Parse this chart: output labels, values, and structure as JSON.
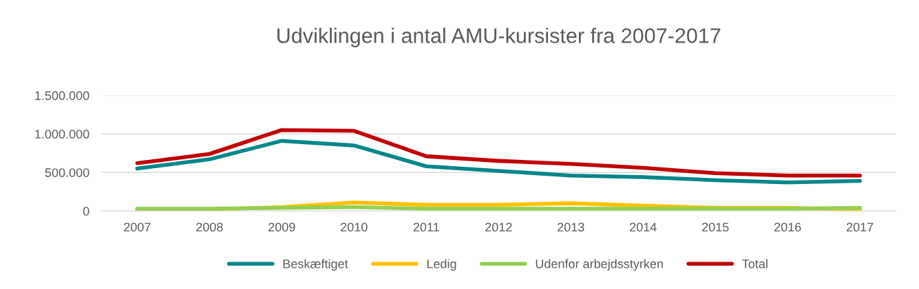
{
  "chart_data": {
    "type": "line",
    "title": "Udviklingen i antal AMU-kursister fra 2007-2017",
    "categories": [
      "2007",
      "2008",
      "2009",
      "2010",
      "2011",
      "2012",
      "2013",
      "2014",
      "2015",
      "2016",
      "2017"
    ],
    "series": [
      {
        "name": "Beskæftiget",
        "color": "#00868b",
        "values": [
          550000,
          670000,
          910000,
          850000,
          580000,
          520000,
          460000,
          440000,
          400000,
          370000,
          390000
        ]
      },
      {
        "name": "Ledig",
        "color": "#ffc000",
        "values": [
          15000,
          20000,
          50000,
          110000,
          80000,
          80000,
          100000,
          70000,
          40000,
          40000,
          20000
        ]
      },
      {
        "name": "Udenfor arbejdsstyrken",
        "color": "#92d050",
        "values": [
          30000,
          30000,
          40000,
          50000,
          30000,
          30000,
          30000,
          30000,
          30000,
          30000,
          40000
        ]
      },
      {
        "name": "Total",
        "color": "#c00000",
        "values": [
          620000,
          740000,
          1050000,
          1040000,
          710000,
          650000,
          610000,
          560000,
          490000,
          460000,
          460000
        ]
      }
    ],
    "ylim": [
      0,
      1500000
    ],
    "yticks": [
      {
        "value": 0,
        "label": "0"
      },
      {
        "value": 500000,
        "label": "500.000"
      },
      {
        "value": 1000000,
        "label": "1.000.000"
      },
      {
        "value": 1500000,
        "label": "1.500.000"
      }
    ],
    "grid": "y",
    "legend": "bottom",
    "marker": "none",
    "line_style": "solid"
  }
}
